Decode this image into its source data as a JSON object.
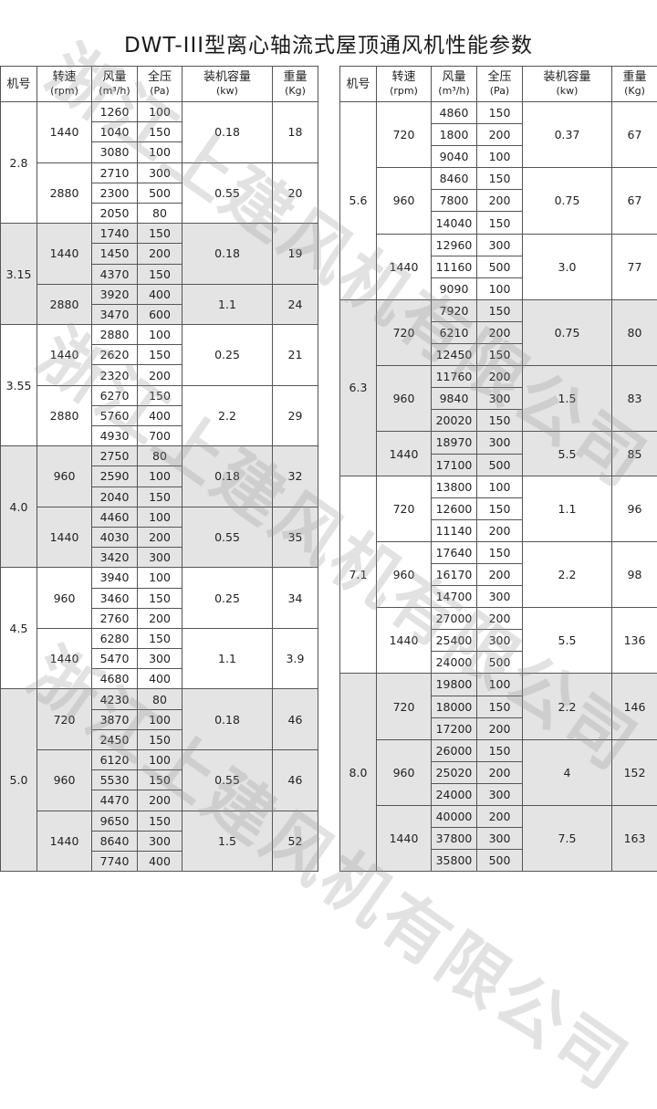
{
  "title": "DWT-III型离心轴流式屋顶通风机性能参数",
  "watermark": "浙江上建风机有限公司",
  "colors": {
    "shade": "#e4e4e4",
    "border": "#555555"
  },
  "headers": [
    {
      "l1": "机号",
      "l2": ""
    },
    {
      "l1": "转速",
      "l2": "(rpm)"
    },
    {
      "l1": "风量",
      "l2": "(m³/h)"
    },
    {
      "l1": "全压",
      "l2": "(Pa)"
    },
    {
      "l1": "装机容量",
      "l2": "(kw)"
    },
    {
      "l1": "重量",
      "l2": "(Kg)"
    }
  ],
  "tables": [
    {
      "groups": [
        {
          "model": "2.8",
          "speeds": [
            {
              "rpm": "1440",
              "kw": "0.18",
              "kg": "18",
              "rows": [
                [
                  "1260",
                  "100"
                ],
                [
                  "1040",
                  "150"
                ],
                [
                  "3080",
                  "100"
                ]
              ]
            },
            {
              "rpm": "2880",
              "kw": "0.55",
              "kg": "20",
              "rows": [
                [
                  "2710",
                  "300"
                ],
                [
                  "2300",
                  "500"
                ],
                [
                  "2050",
                  "80"
                ]
              ]
            }
          ]
        },
        {
          "model": "3.15",
          "speeds": [
            {
              "rpm": "1440",
              "kw": "0.18",
              "kg": "19",
              "rows": [
                [
                  "1740",
                  "150"
                ],
                [
                  "1450",
                  "200"
                ],
                [
                  "4370",
                  "150"
                ]
              ]
            },
            {
              "rpm": "2880",
              "kw": "1.1",
              "kg": "24",
              "rows": [
                [
                  "3920",
                  "400"
                ],
                [
                  "3470",
                  "600"
                ]
              ]
            }
          ]
        },
        {
          "model": "3.55",
          "speeds": [
            {
              "rpm": "1440",
              "kw": "0.25",
              "kg": "21",
              "rows": [
                [
                  "2880",
                  "100"
                ],
                [
                  "2620",
                  "150"
                ],
                [
                  "2320",
                  "200"
                ]
              ]
            },
            {
              "rpm": "2880",
              "kw": "2.2",
              "kg": "29",
              "rows": [
                [
                  "6270",
                  "150"
                ],
                [
                  "5760",
                  "400"
                ],
                [
                  "4930",
                  "700"
                ]
              ]
            }
          ]
        },
        {
          "model": "4.0",
          "speeds": [
            {
              "rpm": "960",
              "kw": "0.18",
              "kg": "32",
              "rows": [
                [
                  "2750",
                  "80"
                ],
                [
                  "2590",
                  "100"
                ],
                [
                  "2040",
                  "150"
                ]
              ]
            },
            {
              "rpm": "1440",
              "kw": "0.55",
              "kg": "35",
              "rows": [
                [
                  "4460",
                  "100"
                ],
                [
                  "4030",
                  "200"
                ],
                [
                  "3420",
                  "300"
                ]
              ]
            }
          ]
        },
        {
          "model": "4.5",
          "speeds": [
            {
              "rpm": "960",
              "kw": "0.25",
              "kg": "34",
              "rows": [
                [
                  "3940",
                  "100"
                ],
                [
                  "3460",
                  "150"
                ],
                [
                  "2760",
                  "200"
                ]
              ]
            },
            {
              "rpm": "1440",
              "kw": "1.1",
              "kg": "3.9",
              "rows": [
                [
                  "6280",
                  "150"
                ],
                [
                  "5470",
                  "300"
                ],
                [
                  "4680",
                  "400"
                ]
              ]
            }
          ]
        },
        {
          "model": "5.0",
          "speeds": [
            {
              "rpm": "720",
              "kw": "0.18",
              "kg": "46",
              "rows": [
                [
                  "4230",
                  "80"
                ],
                [
                  "3870",
                  "100"
                ],
                [
                  "2450",
                  "150"
                ]
              ]
            },
            {
              "rpm": "960",
              "kw": "0.55",
              "kg": "46",
              "rows": [
                [
                  "6120",
                  "100"
                ],
                [
                  "5530",
                  "150"
                ],
                [
                  "4470",
                  "200"
                ]
              ]
            },
            {
              "rpm": "1440",
              "kw": "1.5",
              "kg": "52",
              "rows": [
                [
                  "9650",
                  "150"
                ],
                [
                  "8640",
                  "300"
                ],
                [
                  "7740",
                  "400"
                ]
              ]
            }
          ]
        }
      ]
    },
    {
      "groups": [
        {
          "model": "5.6",
          "speeds": [
            {
              "rpm": "720",
              "kw": "0.37",
              "kg": "67",
              "rows": [
                [
                  "4860",
                  "150"
                ],
                [
                  "1800",
                  "200"
                ],
                [
                  "9040",
                  "100"
                ]
              ]
            },
            {
              "rpm": "960",
              "kw": "0.75",
              "kg": "67",
              "rows": [
                [
                  "8460",
                  "150"
                ],
                [
                  "7800",
                  "200"
                ],
                [
                  "14040",
                  "150"
                ]
              ]
            },
            {
              "rpm": "1440",
              "kw": "3.0",
              "kg": "77",
              "rows": [
                [
                  "12960",
                  "300"
                ],
                [
                  "11160",
                  "500"
                ],
                [
                  "9090",
                  "100"
                ]
              ]
            }
          ]
        },
        {
          "model": "6.3",
          "speeds": [
            {
              "rpm": "720",
              "kw": "0.75",
              "kg": "80",
              "rows": [
                [
                  "7920",
                  "150"
                ],
                [
                  "6210",
                  "200"
                ],
                [
                  "12450",
                  "150"
                ]
              ]
            },
            {
              "rpm": "960",
              "kw": "1.5",
              "kg": "83",
              "rows": [
                [
                  "11760",
                  "200"
                ],
                [
                  "9840",
                  "300"
                ],
                [
                  "20020",
                  "150"
                ]
              ]
            },
            {
              "rpm": "1440",
              "kw": "5.5",
              "kg": "85",
              "rows": [
                [
                  "18970",
                  "300"
                ],
                [
                  "17100",
                  "500"
                ]
              ]
            }
          ]
        },
        {
          "model": "7.1",
          "speeds": [
            {
              "rpm": "720",
              "kw": "1.1",
              "kg": "96",
              "rows": [
                [
                  "13800",
                  "100"
                ],
                [
                  "12600",
                  "150"
                ],
                [
                  "11140",
                  "200"
                ]
              ]
            },
            {
              "rpm": "960",
              "kw": "2.2",
              "kg": "98",
              "rows": [
                [
                  "17640",
                  "150"
                ],
                [
                  "16170",
                  "200"
                ],
                [
                  "14700",
                  "300"
                ]
              ]
            },
            {
              "rpm": "1440",
              "kw": "5.5",
              "kg": "136",
              "rows": [
                [
                  "27000",
                  "200"
                ],
                [
                  "25400",
                  "300"
                ],
                [
                  "24000",
                  "500"
                ]
              ]
            }
          ]
        },
        {
          "model": "8.0",
          "speeds": [
            {
              "rpm": "720",
              "kw": "2.2",
              "kg": "146",
              "rows": [
                [
                  "19800",
                  "100"
                ],
                [
                  "18000",
                  "150"
                ],
                [
                  "17200",
                  "200"
                ]
              ]
            },
            {
              "rpm": "960",
              "kw": "4",
              "kg": "152",
              "rows": [
                [
                  "26000",
                  "150"
                ],
                [
                  "25020",
                  "200"
                ],
                [
                  "24000",
                  "300"
                ]
              ]
            },
            {
              "rpm": "1440",
              "kw": "7.5",
              "kg": "163",
              "rows": [
                [
                  "40000",
                  "200"
                ],
                [
                  "37800",
                  "300"
                ],
                [
                  "35800",
                  "500"
                ]
              ]
            }
          ]
        }
      ]
    }
  ]
}
